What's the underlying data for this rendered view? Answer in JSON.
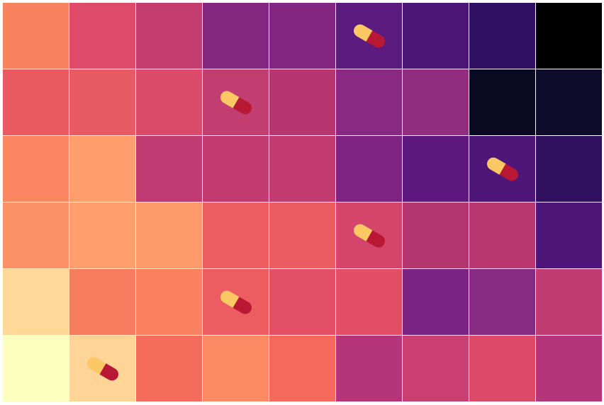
{
  "board": {
    "rows": [
      [
        {
          "color": "#f8845f"
        },
        {
          "color": "#de4a68"
        },
        {
          "color": "#c33d6e"
        },
        {
          "color": "#852780"
        },
        {
          "color": "#832681"
        },
        {
          "color": "#5c1b7f",
          "pill": true
        },
        {
          "color": "#4c1678"
        },
        {
          "color": "#2f1063"
        },
        {
          "color": "#000000"
        }
      ],
      [
        {
          "color": "#ea5a62"
        },
        {
          "color": "#e95b64"
        },
        {
          "color": "#dc4a69"
        },
        {
          "color": "#c23e70",
          "pill": true
        },
        {
          "color": "#b8366f"
        },
        {
          "color": "#8a2982"
        },
        {
          "color": "#932d80"
        },
        {
          "color": "#0a0a22"
        },
        {
          "color": "#0e0b2b"
        }
      ],
      [
        {
          "color": "#fa8662"
        },
        {
          "color": "#fd9e6c"
        },
        {
          "color": "#bf3b72"
        },
        {
          "color": "#c23c71"
        },
        {
          "color": "#c33c71"
        },
        {
          "color": "#7e2381"
        },
        {
          "color": "#5f1880"
        },
        {
          "color": "#4f167a",
          "pill": true
        },
        {
          "color": "#31105f"
        }
      ],
      [
        {
          "color": "#fc9165"
        },
        {
          "color": "#fe9f6d"
        },
        {
          "color": "#fd9a6a"
        },
        {
          "color": "#ec5c61"
        },
        {
          "color": "#ea5b62"
        },
        {
          "color": "#d5446b",
          "pill": true
        },
        {
          "color": "#b4366f"
        },
        {
          "color": "#b9376f"
        },
        {
          "color": "#4d1678"
        }
      ],
      [
        {
          "color": "#fed898"
        },
        {
          "color": "#f87c5f"
        },
        {
          "color": "#fa8160"
        },
        {
          "color": "#ec5c61",
          "pill": true
        },
        {
          "color": "#e34f66"
        },
        {
          "color": "#e34e65"
        },
        {
          "color": "#7b2382"
        },
        {
          "color": "#872a81"
        },
        {
          "color": "#c13c71"
        }
      ],
      [
        {
          "color": "#fcfec0"
        },
        {
          "color": "#fed597",
          "pill": true
        },
        {
          "color": "#f56b5c"
        },
        {
          "color": "#fc8a63"
        },
        {
          "color": "#f4695c"
        },
        {
          "color": "#b5347a"
        },
        {
          "color": "#c93f6f"
        },
        {
          "color": "#dc4a68"
        },
        {
          "color": "#b5357a"
        }
      ]
    ]
  }
}
